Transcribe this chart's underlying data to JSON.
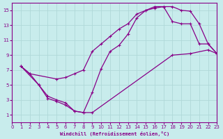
{
  "xlabel": "Windchill (Refroidissement éolien,°C)",
  "xlim": [
    0,
    23
  ],
  "ylim": [
    0,
    16
  ],
  "xticks": [
    0,
    1,
    2,
    3,
    4,
    5,
    6,
    7,
    8,
    9,
    10,
    11,
    12,
    13,
    14,
    15,
    16,
    17,
    18,
    19,
    20,
    21,
    22,
    23
  ],
  "yticks": [
    1,
    3,
    5,
    7,
    9,
    11,
    13,
    15
  ],
  "background_color": "#c8ecec",
  "grid_color": "#b0d8d8",
  "line_color": "#880088",
  "line1_x": [
    1,
    2,
    3,
    4,
    5,
    6,
    7,
    8,
    9,
    10,
    11,
    12,
    13,
    14,
    15,
    16,
    17,
    18,
    19,
    20,
    21,
    22,
    23
  ],
  "line1_y": [
    7.5,
    6.5,
    5.0,
    3.2,
    2.8,
    2.3,
    1.5,
    1.3,
    4.0,
    7.2,
    9.5,
    10.3,
    11.8,
    14.0,
    15.0,
    15.5,
    15.5,
    15.5,
    15.0,
    14.9,
    13.2,
    10.5,
    9.2
  ],
  "line2_x": [
    1,
    2,
    5,
    6,
    7,
    8,
    9,
    10,
    11,
    12,
    13,
    14,
    15,
    16,
    17,
    18,
    19,
    20,
    21,
    22,
    23
  ],
  "line2_y": [
    7.5,
    6.5,
    5.8,
    6.0,
    6.5,
    7.0,
    9.5,
    10.5,
    11.5,
    12.5,
    13.2,
    14.5,
    15.0,
    15.3,
    15.5,
    13.5,
    13.2,
    13.2,
    10.5,
    10.5,
    9.2
  ],
  "line3_x": [
    1,
    3,
    4,
    5,
    6,
    7,
    8,
    9,
    18,
    20,
    22,
    23
  ],
  "line3_y": [
    7.5,
    5.0,
    3.5,
    3.0,
    2.6,
    1.5,
    1.3,
    1.3,
    9.0,
    9.2,
    9.7,
    9.2
  ]
}
